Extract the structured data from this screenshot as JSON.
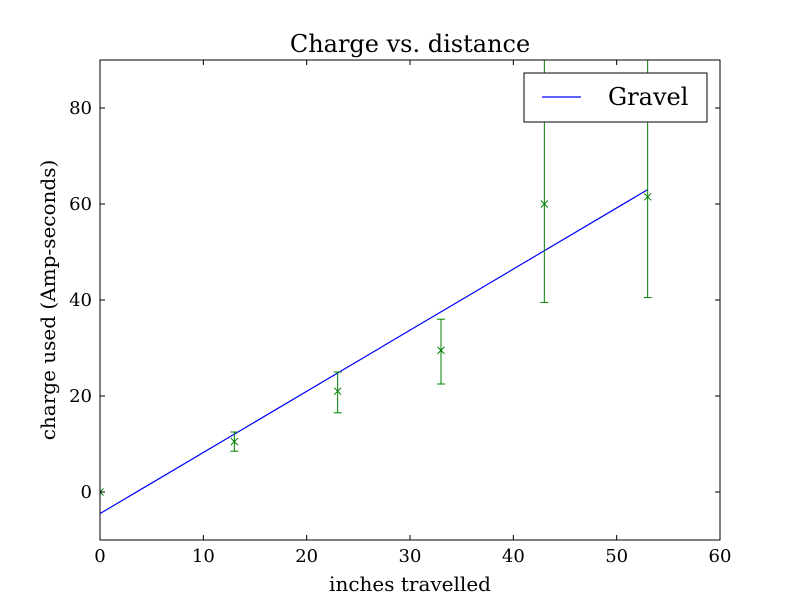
{
  "chart_data": {
    "type": "scatter",
    "title": "Charge vs. distance",
    "xlabel": "inches travelled",
    "ylabel": "charge used (Amp-seconds)",
    "xlim": [
      0,
      60
    ],
    "ylim": [
      -10,
      90
    ],
    "xticks": [
      0,
      10,
      20,
      30,
      40,
      50,
      60
    ],
    "yticks": [
      0,
      20,
      40,
      60,
      80
    ],
    "grid": false,
    "legend": {
      "placement": "top-right",
      "entries": [
        "Gravel"
      ]
    },
    "colors": {
      "fit_line": "#0000ff",
      "points": "#008000"
    },
    "series": [
      {
        "name": "Gravel",
        "kind": "line",
        "x": [
          0,
          53
        ],
        "y": [
          -4.5,
          63
        ]
      },
      {
        "kind": "errorbar",
        "x": [
          0,
          13,
          23,
          33,
          43,
          53
        ],
        "y": [
          0,
          10.5,
          21,
          29.5,
          60,
          61.5
        ],
        "yerr_low": [
          0,
          8.5,
          16.5,
          22.5,
          39.5,
          40.5
        ],
        "yerr_high": [
          0,
          12.5,
          25,
          36,
          90,
          90
        ]
      }
    ]
  }
}
